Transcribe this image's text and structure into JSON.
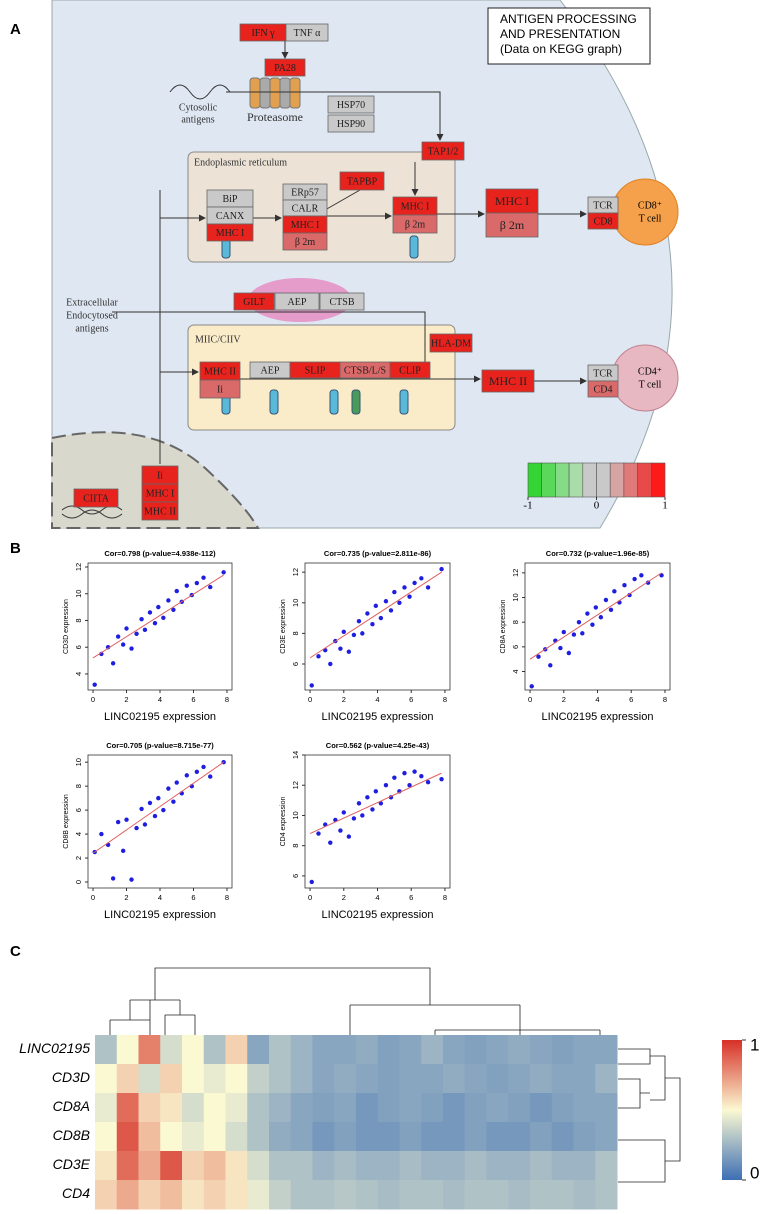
{
  "panel_labels": [
    "A",
    "B",
    "C"
  ],
  "diagram": {
    "title_box": [
      "ANTIGEN PROCESSING",
      " AND PRESENTATION",
      "(Data on KEGG graph)"
    ],
    "nodes": [
      {
        "label": "IFN γ",
        "color": "#e8231e"
      },
      {
        "label": "TNF α",
        "color": "#c9c9c9"
      },
      {
        "label": "PA28",
        "color": "#e8231e"
      },
      {
        "label": "HSP70",
        "color": "#c9c9c9"
      },
      {
        "label": "HSP90",
        "color": "#c9c9c9"
      },
      {
        "label": "TAP1/2",
        "color": "#e8231e"
      },
      {
        "label": "TAPBP",
        "color": "#e8231e"
      },
      {
        "label": "BiP",
        "color": "#c9c9c9"
      },
      {
        "label": "CANX",
        "color": "#c9c9c9"
      },
      {
        "label": "MHC I",
        "color": "#e8231e"
      },
      {
        "label": "ERp57",
        "color": "#c9c9c9"
      },
      {
        "label": "CALR",
        "color": "#c9c9c9"
      },
      {
        "label": "MHC I",
        "color": "#e8231e"
      },
      {
        "label": "β 2m",
        "color": "#da6a6a"
      },
      {
        "label": "MHC I",
        "color": "#e8231e"
      },
      {
        "label": "β 2m",
        "color": "#da6a6a"
      },
      {
        "label": "MHC I",
        "color": "#e8231e"
      },
      {
        "label": "β 2m",
        "color": "#da6a6a"
      },
      {
        "label": "TCR",
        "color": "#c9c9c9"
      },
      {
        "label": "CD8",
        "color": "#e8231e"
      },
      {
        "label": "GILT",
        "color": "#e8231e"
      },
      {
        "label": "AEP",
        "color": "#c9c9c9"
      },
      {
        "label": "CTSB",
        "color": "#c9c9c9"
      },
      {
        "label": "HLA-DM",
        "color": "#e8231e"
      },
      {
        "label": "MHC II",
        "color": "#e8231e"
      },
      {
        "label": "Ii",
        "color": "#da6a6a"
      },
      {
        "label": "AEP",
        "color": "#c9c9c9"
      },
      {
        "label": "SLIP",
        "color": "#e8231e"
      },
      {
        "label": "CTSB/L/S",
        "color": "#da6a6a"
      },
      {
        "label": "CLIP",
        "color": "#e8231e"
      },
      {
        "label": "MHC II",
        "color": "#e8231e"
      },
      {
        "label": "TCR",
        "color": "#c9c9c9"
      },
      {
        "label": "CD4",
        "color": "#da6a6a"
      },
      {
        "label": "CIITA",
        "color": "#e8231e"
      },
      {
        "label": "Ii",
        "color": "#e8231e"
      },
      {
        "label": "MHC I",
        "color": "#e8231e"
      },
      {
        "label": "MHC II",
        "color": "#e8231e"
      }
    ],
    "labels": [
      "Cytosolic",
      "antigens",
      "Proteasome",
      "Endoplasmic reticulum",
      "Extracellular",
      "Endocytosed",
      "antigens",
      "MIIC/CIIV"
    ],
    "cells": [
      [
        "CD8⁺",
        "T cell"
      ],
      [
        "CD4⁺",
        "T cell"
      ]
    ],
    "scale": {
      "colors": [
        "#33d433",
        "#5ad85a",
        "#86dc86",
        "#aadcaa",
        "#c9c9c9",
        "#c9c9c9",
        "#d7a4a4",
        "#e07a7a",
        "#e84a4a",
        "#ff1a1a"
      ],
      "lim": [
        -1,
        1
      ],
      "ticks": [
        -1,
        0,
        1
      ]
    }
  },
  "scatter": {
    "point_color": "#1e1ee0",
    "fit_color": "#e06060",
    "plots": [
      {
        "type": "scatter",
        "title": "Cor=0.798 (p-value=4.938e-112)",
        "ylabel": "CD3D expression",
        "xlabel": "LINC02195 expression",
        "xlim": [
          -0.3,
          8.3
        ],
        "ylim": [
          2.8,
          12.3
        ],
        "xticks": [
          0,
          2,
          4,
          6,
          8
        ],
        "yticks": [
          4,
          6,
          8,
          10,
          12
        ],
        "x": [
          0.1,
          0.5,
          0.9,
          1.2,
          1.5,
          1.8,
          2.0,
          2.3,
          2.6,
          2.9,
          3.1,
          3.4,
          3.7,
          3.9,
          4.2,
          4.5,
          4.8,
          5.0,
          5.3,
          5.6,
          5.9,
          6.2,
          6.6,
          7.0,
          7.8
        ],
        "y": [
          3.2,
          5.5,
          6.0,
          4.8,
          6.8,
          6.2,
          7.4,
          5.9,
          7.0,
          8.1,
          7.3,
          8.6,
          7.8,
          9.0,
          8.2,
          9.5,
          8.8,
          10.2,
          9.4,
          10.6,
          9.9,
          10.8,
          11.2,
          10.5,
          11.6
        ],
        "fit_x": [
          0,
          7.8
        ],
        "fit_y": [
          5.2,
          11.4
        ]
      },
      {
        "type": "scatter",
        "title": "Cor=0.735 (p-value=2.811e-86)",
        "ylabel": "CD3E expression",
        "xlabel": "LINC02195 expression",
        "xlim": [
          -0.3,
          8.3
        ],
        "ylim": [
          4.3,
          12.6
        ],
        "xticks": [
          0,
          2,
          4,
          6,
          8
        ],
        "yticks": [
          6,
          8,
          10,
          12
        ],
        "x": [
          0.1,
          0.5,
          0.9,
          1.2,
          1.5,
          1.8,
          2.0,
          2.3,
          2.6,
          2.9,
          3.1,
          3.4,
          3.7,
          3.9,
          4.2,
          4.5,
          4.8,
          5.0,
          5.3,
          5.6,
          5.9,
          6.2,
          6.6,
          7.0,
          7.8
        ],
        "y": [
          4.6,
          6.5,
          6.9,
          6.0,
          7.5,
          7.0,
          8.1,
          6.8,
          7.9,
          8.8,
          8.0,
          9.3,
          8.6,
          9.8,
          9.0,
          10.1,
          9.5,
          10.7,
          10.0,
          11.0,
          10.4,
          11.3,
          11.6,
          11.0,
          12.2
        ],
        "fit_x": [
          0,
          7.8
        ],
        "fit_y": [
          6.4,
          12.0
        ]
      },
      {
        "type": "scatter",
        "title": "Cor=0.732 (p-value=1.96e-85)",
        "ylabel": "CD8A expression",
        "xlabel": "LINC02195 expression",
        "xlim": [
          -0.3,
          8.3
        ],
        "ylim": [
          2.5,
          12.8
        ],
        "xticks": [
          0,
          2,
          4,
          6,
          8
        ],
        "yticks": [
          4,
          6,
          8,
          10,
          12
        ],
        "x": [
          0.1,
          0.5,
          0.9,
          1.2,
          1.5,
          1.8,
          2.0,
          2.3,
          2.6,
          2.9,
          3.1,
          3.4,
          3.7,
          3.9,
          4.2,
          4.5,
          4.8,
          5.0,
          5.3,
          5.6,
          5.9,
          6.2,
          6.6,
          7.0,
          7.8
        ],
        "y": [
          2.8,
          5.2,
          5.8,
          4.5,
          6.5,
          5.9,
          7.2,
          5.5,
          7.0,
          8.0,
          7.1,
          8.7,
          7.8,
          9.2,
          8.4,
          9.8,
          9.0,
          10.5,
          9.6,
          11.0,
          10.2,
          11.5,
          11.8,
          11.2,
          11.8
        ],
        "fit_x": [
          0,
          7.8
        ],
        "fit_y": [
          5.0,
          12.0
        ]
      },
      {
        "type": "scatter",
        "title": "Cor=0.705 (p-value=8.715e-77)",
        "ylabel": "CD8B expression",
        "xlabel": "LINC02195 expression",
        "xlim": [
          -0.3,
          8.3
        ],
        "ylim": [
          -0.5,
          10.6
        ],
        "xticks": [
          0,
          2,
          4,
          6,
          8
        ],
        "yticks": [
          0,
          2,
          4,
          6,
          8,
          10
        ],
        "x": [
          0.1,
          0.5,
          0.9,
          1.2,
          1.5,
          1.8,
          2.0,
          2.3,
          2.6,
          2.9,
          3.1,
          3.4,
          3.7,
          3.9,
          4.2,
          4.5,
          4.8,
          5.0,
          5.3,
          5.6,
          5.9,
          6.2,
          6.6,
          7.0,
          7.8
        ],
        "y": [
          2.5,
          4.0,
          3.1,
          0.3,
          5.0,
          2.6,
          5.2,
          0.2,
          4.5,
          6.1,
          4.8,
          6.6,
          5.5,
          7.0,
          6.0,
          7.8,
          6.7,
          8.3,
          7.4,
          8.9,
          8.0,
          9.2,
          9.6,
          8.8,
          10.0
        ],
        "fit_x": [
          0,
          7.8
        ],
        "fit_y": [
          2.4,
          10.0
        ]
      },
      {
        "type": "scatter",
        "title": "Cor=0.562 (p-value=4.25e-43)",
        "ylabel": "CD4 expression",
        "xlabel": "LINC02195 expression",
        "xlim": [
          -0.3,
          8.3
        ],
        "ylim": [
          5.2,
          14.0
        ],
        "xticks": [
          0,
          2,
          4,
          6,
          8
        ],
        "yticks": [
          6,
          8,
          10,
          12,
          14
        ],
        "x": [
          0.1,
          0.5,
          0.9,
          1.2,
          1.5,
          1.8,
          2.0,
          2.3,
          2.6,
          2.9,
          3.1,
          3.4,
          3.7,
          3.9,
          4.2,
          4.5,
          4.8,
          5.0,
          5.3,
          5.6,
          5.9,
          6.2,
          6.6,
          7.0,
          7.8
        ],
        "y": [
          5.6,
          8.8,
          9.4,
          8.2,
          9.7,
          9.0,
          10.2,
          8.6,
          9.8,
          10.8,
          10.0,
          11.2,
          10.4,
          11.6,
          10.8,
          12.0,
          11.2,
          12.5,
          11.6,
          12.8,
          12.0,
          12.9,
          12.6,
          12.2,
          12.4
        ],
        "fit_x": [
          0,
          7.8
        ],
        "fit_y": [
          8.8,
          12.8
        ]
      }
    ]
  },
  "heatmap": {
    "type": "heatmap",
    "rows": [
      "LINC02195",
      "CD3D",
      "CD8A",
      "CD8B",
      "CD3E",
      "CD4"
    ],
    "colormap": [
      "#3d6fb4",
      "#fbf9d2",
      "#d73027"
    ],
    "lim": [
      0,
      1
    ],
    "ticks": [
      0,
      1
    ],
    "values": [
      [
        0.3,
        0.5,
        0.8,
        0.4,
        0.5,
        0.3,
        0.6,
        0.2,
        0.3,
        0.25,
        0.2,
        0.2,
        0.22,
        0.18,
        0.2,
        0.25,
        0.2,
        0.18,
        0.2,
        0.22,
        0.2,
        0.18,
        0.2,
        0.2
      ],
      [
        0.5,
        0.6,
        0.4,
        0.6,
        0.5,
        0.45,
        0.5,
        0.35,
        0.3,
        0.25,
        0.2,
        0.22,
        0.2,
        0.18,
        0.2,
        0.2,
        0.22,
        0.2,
        0.18,
        0.2,
        0.22,
        0.2,
        0.2,
        0.25
      ],
      [
        0.45,
        0.85,
        0.6,
        0.55,
        0.4,
        0.5,
        0.45,
        0.3,
        0.25,
        0.2,
        0.18,
        0.2,
        0.15,
        0.18,
        0.2,
        0.18,
        0.15,
        0.18,
        0.2,
        0.18,
        0.15,
        0.18,
        0.2,
        0.2
      ],
      [
        0.5,
        0.9,
        0.65,
        0.5,
        0.45,
        0.5,
        0.4,
        0.3,
        0.22,
        0.2,
        0.15,
        0.18,
        0.15,
        0.15,
        0.18,
        0.15,
        0.15,
        0.18,
        0.15,
        0.15,
        0.18,
        0.15,
        0.18,
        0.2
      ],
      [
        0.55,
        0.85,
        0.7,
        0.9,
        0.6,
        0.65,
        0.55,
        0.4,
        0.3,
        0.3,
        0.25,
        0.28,
        0.25,
        0.25,
        0.28,
        0.25,
        0.25,
        0.28,
        0.25,
        0.25,
        0.28,
        0.25,
        0.25,
        0.3
      ],
      [
        0.6,
        0.7,
        0.6,
        0.65,
        0.55,
        0.6,
        0.55,
        0.45,
        0.35,
        0.3,
        0.3,
        0.32,
        0.3,
        0.28,
        0.3,
        0.3,
        0.28,
        0.3,
        0.3,
        0.28,
        0.3,
        0.3,
        0.28,
        0.3
      ]
    ]
  }
}
